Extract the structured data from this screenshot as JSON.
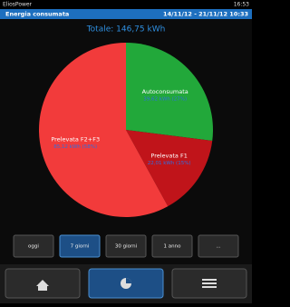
{
  "status_bar": {
    "app": "EliosPower",
    "time": "16:53"
  },
  "header": {
    "title": "Energia consumata",
    "period": "14/11/12 - 21/11/12 10:33"
  },
  "chart_data": {
    "type": "pie",
    "title": "Totale: 146,75 kWh",
    "categories": [
      "Autoconsumata",
      "Prelevata F1",
      "Prelevata F2+F3"
    ],
    "values": [
      39.62,
      22.01,
      85.12
    ],
    "value_labels": [
      "39,62 kWh (27%)",
      "22,01 kWh (15%)",
      "85,12 kWh (58%)"
    ],
    "colors": [
      "#22a83a",
      "#c0141a",
      "#f23b3b"
    ]
  },
  "period_buttons": [
    "oggi",
    "7 giorni",
    "30 giorni",
    "1 anno",
    "..."
  ],
  "selected_button": 1
}
